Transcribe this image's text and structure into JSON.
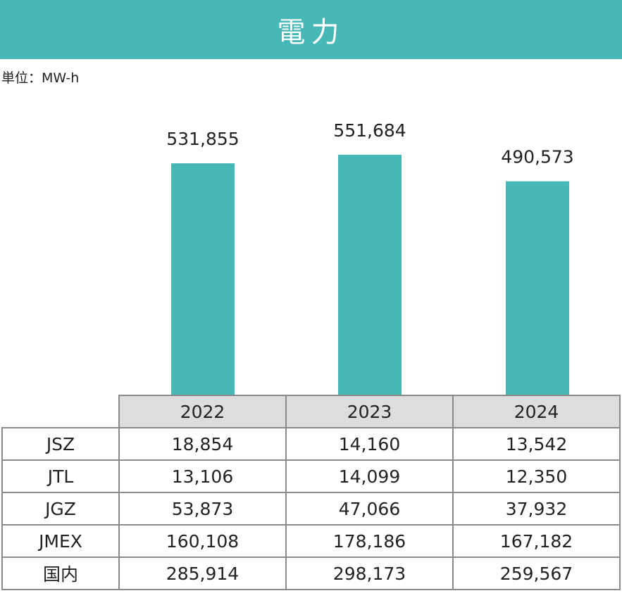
{
  "title": "電力",
  "unit_label": "単位：MW-h",
  "colors": {
    "accent": "#46b8b8",
    "header_bg": "#dddddd",
    "border": "#8a8a8a"
  },
  "chart_data": {
    "type": "bar",
    "title": "電力",
    "ylabel": "単位：MW-h",
    "categories": [
      "2022",
      "2023",
      "2024"
    ],
    "values": [
      531855,
      551684,
      490573
    ],
    "value_labels": [
      "531,855",
      "551,684",
      "490,573"
    ],
    "ylim": [
      0,
      600000
    ],
    "grid": false
  },
  "table": {
    "headers": [
      "2022",
      "2023",
      "2024"
    ],
    "rows": [
      {
        "label": "JSZ",
        "values": [
          "18,854",
          "14,160",
          "13,542"
        ]
      },
      {
        "label": "JTL",
        "values": [
          "13,106",
          "14,099",
          "12,350"
        ]
      },
      {
        "label": "JGZ",
        "values": [
          "53,873",
          "47,066",
          "37,932"
        ]
      },
      {
        "label": "JMEX",
        "values": [
          "160,108",
          "178,186",
          "167,182"
        ]
      },
      {
        "label": "国内",
        "values": [
          "285,914",
          "298,173",
          "259,567"
        ]
      }
    ]
  }
}
